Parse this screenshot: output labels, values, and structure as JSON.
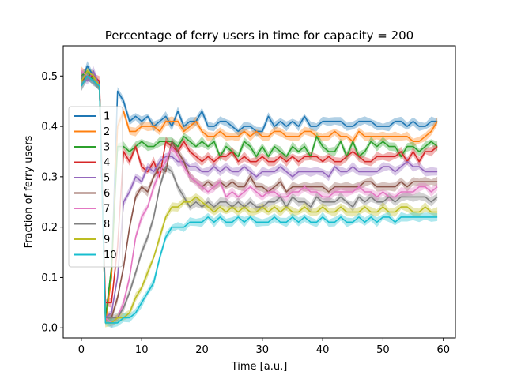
{
  "chart_data": {
    "type": "line",
    "title": "Percentage of ferry users in time for capacity = 200",
    "xlabel": "Time [a.u.]",
    "ylabel": "Fraction of ferry users",
    "xlim": [
      -3,
      62
    ],
    "ylim": [
      -0.02,
      0.56
    ],
    "x_ticks": [
      0,
      10,
      20,
      30,
      40,
      50,
      60
    ],
    "y_ticks": [
      0.0,
      0.1,
      0.2,
      0.3,
      0.4,
      0.5
    ],
    "x_tick_labels": [
      "0",
      "10",
      "20",
      "30",
      "40",
      "50",
      "60"
    ],
    "y_tick_labels": [
      "0.0",
      "0.1",
      "0.2",
      "0.3",
      "0.4",
      "0.5"
    ],
    "grid": false,
    "legend_position": "center-left",
    "band": "shaded spread around each series",
    "series": [
      {
        "name": "1",
        "color": "#1f77b4",
        "x_start": 0,
        "values": [
          0.49,
          0.52,
          0.5,
          0.48,
          0.02,
          0.1,
          0.47,
          0.45,
          0.41,
          0.42,
          0.41,
          0.42,
          0.4,
          0.41,
          0.42,
          0.4,
          0.43,
          0.4,
          0.41,
          0.41,
          0.43,
          0.4,
          0.4,
          0.41,
          0.41,
          0.4,
          0.39,
          0.4,
          0.4,
          0.39,
          0.39,
          0.42,
          0.4,
          0.41,
          0.4,
          0.41,
          0.4,
          0.42,
          0.4,
          0.4,
          0.41,
          0.41,
          0.41,
          0.41,
          0.4,
          0.4,
          0.41,
          0.41,
          0.41,
          0.4,
          0.4,
          0.4,
          0.41,
          0.41,
          0.4,
          0.41,
          0.4,
          0.4,
          0.41,
          0.41
        ]
      },
      {
        "name": "2",
        "color": "#ff7f0e",
        "x_start": 0,
        "values": [
          0.51,
          0.5,
          0.5,
          0.48,
          0.01,
          0.1,
          0.4,
          0.43,
          0.39,
          0.39,
          0.4,
          0.4,
          0.4,
          0.39,
          0.41,
          0.41,
          0.41,
          0.39,
          0.4,
          0.41,
          0.39,
          0.38,
          0.38,
          0.39,
          0.38,
          0.38,
          0.38,
          0.39,
          0.38,
          0.39,
          0.38,
          0.38,
          0.39,
          0.39,
          0.38,
          0.38,
          0.38,
          0.39,
          0.39,
          0.38,
          0.38,
          0.38,
          0.39,
          0.38,
          0.38,
          0.37,
          0.39,
          0.38,
          0.38,
          0.38,
          0.38,
          0.38,
          0.38,
          0.38,
          0.38,
          0.37,
          0.37,
          0.38,
          0.39,
          0.41
        ]
      },
      {
        "name": "3",
        "color": "#2ca02c",
        "x_start": 0,
        "values": [
          0.5,
          0.51,
          0.49,
          0.48,
          0.02,
          0.12,
          0.36,
          0.36,
          0.35,
          0.36,
          0.37,
          0.36,
          0.36,
          0.37,
          0.37,
          0.37,
          0.36,
          0.38,
          0.37,
          0.36,
          0.37,
          0.36,
          0.37,
          0.34,
          0.36,
          0.35,
          0.34,
          0.37,
          0.36,
          0.34,
          0.36,
          0.34,
          0.36,
          0.35,
          0.34,
          0.36,
          0.35,
          0.36,
          0.34,
          0.38,
          0.36,
          0.35,
          0.35,
          0.37,
          0.34,
          0.37,
          0.34,
          0.35,
          0.37,
          0.36,
          0.37,
          0.36,
          0.36,
          0.34,
          0.36,
          0.36,
          0.35,
          0.36,
          0.37,
          0.36
        ]
      },
      {
        "name": "4",
        "color": "#d62728",
        "x_start": 0,
        "values": [
          0.48,
          0.5,
          0.5,
          0.49,
          0.05,
          0.05,
          0.16,
          0.35,
          0.33,
          0.36,
          0.32,
          0.31,
          0.33,
          0.3,
          0.37,
          0.36,
          0.35,
          0.37,
          0.35,
          0.34,
          0.33,
          0.34,
          0.33,
          0.34,
          0.34,
          0.35,
          0.33,
          0.34,
          0.33,
          0.33,
          0.34,
          0.33,
          0.33,
          0.34,
          0.33,
          0.34,
          0.33,
          0.34,
          0.34,
          0.34,
          0.33,
          0.34,
          0.33,
          0.33,
          0.34,
          0.35,
          0.34,
          0.33,
          0.33,
          0.34,
          0.34,
          0.34,
          0.34,
          0.35,
          0.33,
          0.35,
          0.33,
          0.35,
          0.35,
          0.36
        ]
      },
      {
        "name": "5",
        "color": "#9467bd",
        "x_start": 0,
        "values": [
          0.5,
          0.49,
          0.51,
          0.48,
          0.02,
          0.03,
          0.1,
          0.25,
          0.27,
          0.3,
          0.29,
          0.32,
          0.31,
          0.33,
          0.34,
          0.34,
          0.33,
          0.33,
          0.32,
          0.32,
          0.31,
          0.31,
          0.32,
          0.31,
          0.32,
          0.31,
          0.31,
          0.32,
          0.31,
          0.3,
          0.31,
          0.31,
          0.31,
          0.32,
          0.31,
          0.3,
          0.31,
          0.31,
          0.31,
          0.31,
          0.31,
          0.3,
          0.32,
          0.31,
          0.31,
          0.32,
          0.31,
          0.31,
          0.31,
          0.31,
          0.32,
          0.32,
          0.31,
          0.32,
          0.33,
          0.32,
          0.32,
          0.31,
          0.31,
          0.31
        ]
      },
      {
        "name": "6",
        "color": "#8c564b",
        "x_start": 0,
        "values": [
          0.49,
          0.5,
          0.49,
          0.48,
          0.02,
          0.02,
          0.06,
          0.12,
          0.2,
          0.26,
          0.28,
          0.27,
          0.3,
          0.32,
          0.31,
          0.37,
          0.35,
          0.33,
          0.3,
          0.29,
          0.28,
          0.29,
          0.28,
          0.29,
          0.28,
          0.29,
          0.28,
          0.28,
          0.3,
          0.28,
          0.28,
          0.27,
          0.28,
          0.29,
          0.27,
          0.28,
          0.28,
          0.28,
          0.28,
          0.28,
          0.28,
          0.27,
          0.28,
          0.28,
          0.28,
          0.28,
          0.28,
          0.29,
          0.29,
          0.28,
          0.28,
          0.28,
          0.28,
          0.29,
          0.28,
          0.29,
          0.29,
          0.29,
          0.29,
          0.29
        ]
      },
      {
        "name": "7",
        "color": "#e377c2",
        "x_start": 0,
        "values": [
          0.51,
          0.5,
          0.49,
          0.48,
          0.02,
          0.01,
          0.02,
          0.05,
          0.1,
          0.18,
          0.22,
          0.24,
          0.28,
          0.31,
          0.33,
          0.36,
          0.34,
          0.32,
          0.3,
          0.29,
          0.28,
          0.27,
          0.28,
          0.29,
          0.26,
          0.27,
          0.26,
          0.27,
          0.28,
          0.27,
          0.26,
          0.27,
          0.27,
          0.26,
          0.26,
          0.27,
          0.27,
          0.28,
          0.27,
          0.27,
          0.26,
          0.26,
          0.27,
          0.27,
          0.27,
          0.27,
          0.28,
          0.27,
          0.27,
          0.26,
          0.27,
          0.26,
          0.26,
          0.27,
          0.27,
          0.27,
          0.28,
          0.28,
          0.27,
          0.28
        ]
      },
      {
        "name": "8",
        "color": "#7f7f7f",
        "x_start": 0,
        "values": [
          0.5,
          0.5,
          0.49,
          0.48,
          0.02,
          0.02,
          0.02,
          0.04,
          0.07,
          0.11,
          0.15,
          0.18,
          0.22,
          0.28,
          0.32,
          0.31,
          0.28,
          0.26,
          0.24,
          0.25,
          0.24,
          0.25,
          0.24,
          0.25,
          0.25,
          0.24,
          0.25,
          0.24,
          0.25,
          0.24,
          0.24,
          0.25,
          0.25,
          0.26,
          0.24,
          0.26,
          0.25,
          0.25,
          0.24,
          0.26,
          0.25,
          0.25,
          0.25,
          0.26,
          0.25,
          0.24,
          0.26,
          0.25,
          0.26,
          0.25,
          0.25,
          0.26,
          0.25,
          0.26,
          0.26,
          0.26,
          0.26,
          0.26,
          0.25,
          0.26
        ]
      },
      {
        "name": "9",
        "color": "#bcbd22",
        "x_start": 0,
        "values": [
          0.49,
          0.51,
          0.5,
          0.48,
          0.01,
          0.01,
          0.02,
          0.02,
          0.03,
          0.06,
          0.08,
          0.11,
          0.14,
          0.18,
          0.22,
          0.24,
          0.24,
          0.25,
          0.25,
          0.26,
          0.25,
          0.24,
          0.23,
          0.24,
          0.23,
          0.24,
          0.23,
          0.24,
          0.23,
          0.23,
          0.24,
          0.23,
          0.24,
          0.23,
          0.24,
          0.23,
          0.23,
          0.24,
          0.23,
          0.23,
          0.24,
          0.23,
          0.23,
          0.24,
          0.23,
          0.23,
          0.23,
          0.24,
          0.23,
          0.23,
          0.24,
          0.23,
          0.23,
          0.24,
          0.24,
          0.23,
          0.23,
          0.24,
          0.23,
          0.23
        ]
      },
      {
        "name": "10",
        "color": "#17becf",
        "x_start": 0,
        "values": [
          0.48,
          0.5,
          0.49,
          0.48,
          0.01,
          0.01,
          0.01,
          0.02,
          0.02,
          0.03,
          0.05,
          0.07,
          0.09,
          0.14,
          0.18,
          0.2,
          0.2,
          0.2,
          0.21,
          0.21,
          0.21,
          0.22,
          0.21,
          0.22,
          0.21,
          0.21,
          0.22,
          0.21,
          0.22,
          0.21,
          0.21,
          0.21,
          0.22,
          0.21,
          0.21,
          0.22,
          0.21,
          0.22,
          0.21,
          0.21,
          0.22,
          0.21,
          0.21,
          0.22,
          0.21,
          0.21,
          0.22,
          0.21,
          0.22,
          0.21,
          0.22,
          0.22,
          0.21,
          0.22,
          0.22,
          0.22,
          0.22,
          0.22,
          0.22,
          0.22
        ]
      }
    ]
  }
}
